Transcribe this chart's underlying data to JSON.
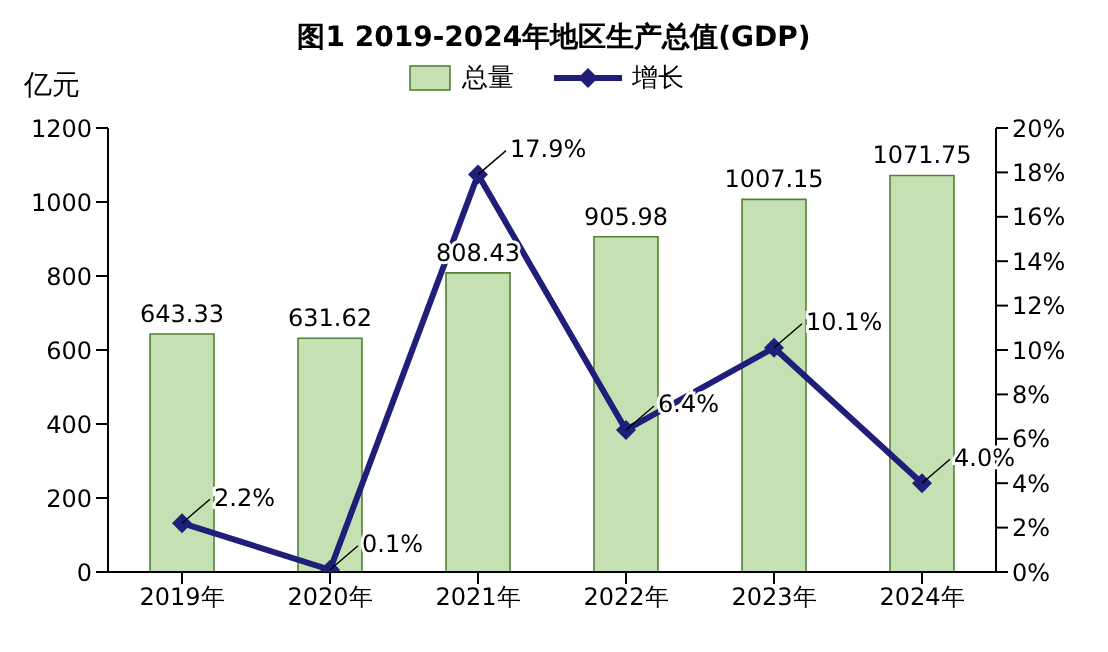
{
  "chart_data": {
    "type": "bar",
    "title": "图1  2019-2024年地区生产总值(GDP)",
    "ylabel": "亿元",
    "categories": [
      "2019年",
      "2020年",
      "2021年",
      "2022年",
      "2023年",
      "2024年"
    ],
    "series": [
      {
        "name": "总量",
        "color": "#c5e0b3",
        "values": [
          643.33,
          631.62,
          808.43,
          905.98,
          1007.15,
          1071.75
        ],
        "value_labels": [
          "643.33",
          "631.62",
          "808.43",
          "905.98",
          "1007.15",
          "1071.75"
        ]
      },
      {
        "name": "增长",
        "type": "line",
        "axis": "y2",
        "color": "#1f1f7a",
        "values": [
          2.2,
          0.1,
          17.9,
          6.4,
          10.1,
          4.0
        ],
        "value_labels": [
          "2.2%",
          "0.1%",
          "17.9%",
          "6.4%",
          "10.1%",
          "4.0%"
        ]
      }
    ],
    "ylim": [
      0,
      1200
    ],
    "yticks": [
      0,
      200,
      400,
      600,
      800,
      1000,
      1200
    ],
    "y2lim": [
      0,
      20
    ],
    "y2ticks": [
      {
        "value": 0,
        "label": "0%"
      },
      {
        "value": 2,
        "label": "2%"
      },
      {
        "value": 4,
        "label": "4%"
      },
      {
        "value": 6,
        "label": "6%"
      },
      {
        "value": 8,
        "label": "8%"
      },
      {
        "value": 10,
        "label": "10%"
      },
      {
        "value": 12,
        "label": "12%"
      },
      {
        "value": 14,
        "label": "14%"
      },
      {
        "value": 16,
        "label": "16%"
      },
      {
        "value": 18,
        "label": "18%"
      },
      {
        "value": 20,
        "label": "20%"
      }
    ],
    "legend": "top",
    "marker": "diamond",
    "line_style": "solid",
    "grid": false
  }
}
